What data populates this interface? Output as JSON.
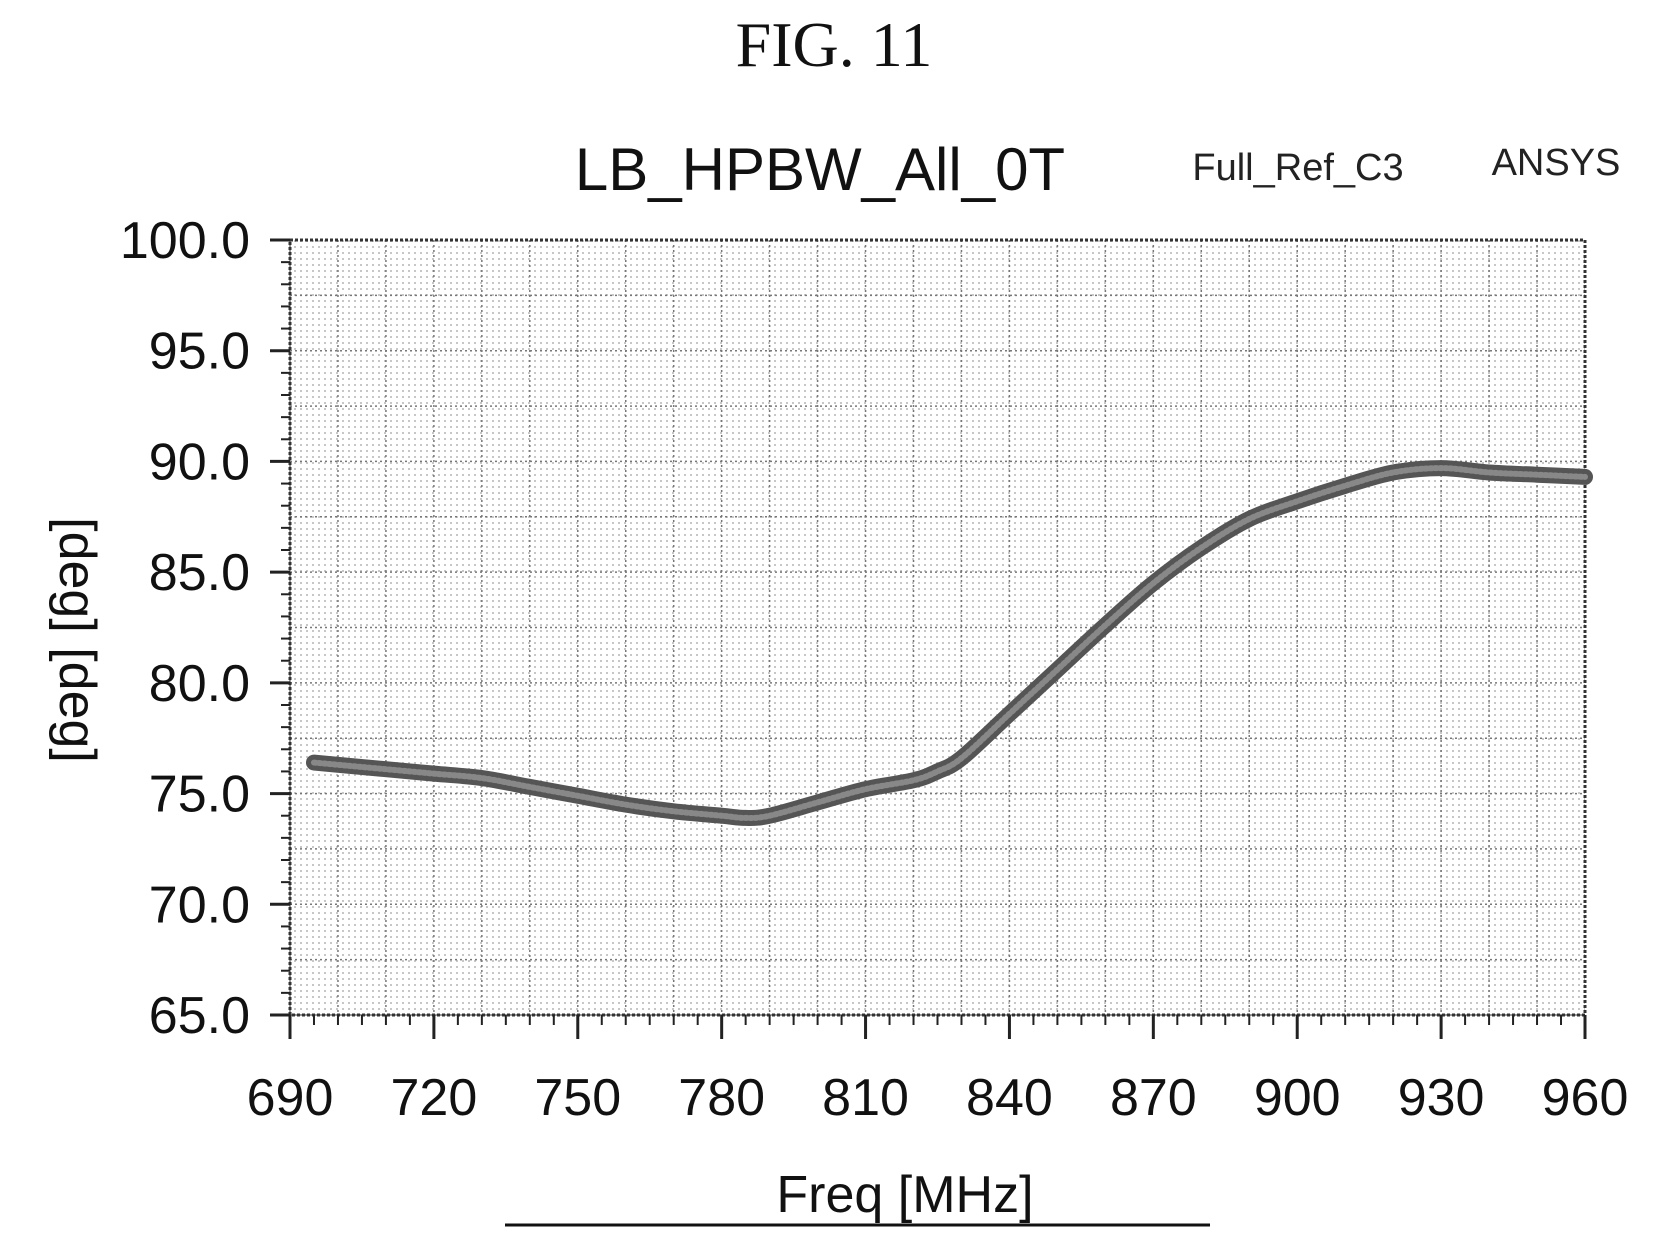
{
  "figure_label": "FIG. 11",
  "chart_data": {
    "type": "line",
    "title": "LB_HPBW_All_0T",
    "annotations": [
      "Full_Ref_C3",
      "ANSYS"
    ],
    "xlabel": "Freq [MHz]",
    "ylabel": "[deg] [deg]",
    "xlim": [
      690,
      960
    ],
    "ylim": [
      65.0,
      100.0
    ],
    "x_ticks": [
      690,
      720,
      750,
      780,
      810,
      840,
      870,
      900,
      930,
      960
    ],
    "x_tick_labels": [
      "690",
      "720",
      "750",
      "780",
      "810",
      "840",
      "870",
      "900",
      "930",
      "960"
    ],
    "y_ticks": [
      65.0,
      70.0,
      75.0,
      80.0,
      85.0,
      90.0,
      95.0,
      100.0
    ],
    "y_tick_labels": [
      "65.0",
      "70.0",
      "75.0",
      "80.0",
      "85.0",
      "90.0",
      "95.0",
      "100.0"
    ],
    "grid": true,
    "series": [
      {
        "color": "#555555",
        "x": [
          695,
          700,
          710,
          720,
          730,
          740,
          750,
          760,
          770,
          780,
          785,
          790,
          800,
          810,
          820,
          825,
          830,
          840,
          850,
          860,
          870,
          880,
          890,
          900,
          910,
          920,
          930,
          940,
          950,
          960
        ],
        "y": [
          76.4,
          76.3,
          76.1,
          75.9,
          75.7,
          75.3,
          74.9,
          74.5,
          74.2,
          74.0,
          73.9,
          74.0,
          74.6,
          75.2,
          75.6,
          76.0,
          76.6,
          78.6,
          80.6,
          82.6,
          84.5,
          86.1,
          87.4,
          88.2,
          88.9,
          89.5,
          89.7,
          89.5,
          89.4,
          89.3
        ]
      }
    ]
  }
}
